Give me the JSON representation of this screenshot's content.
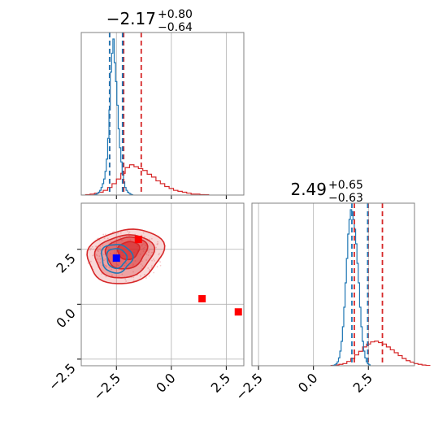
{
  "colors": {
    "red": "#d62728",
    "blue": "#1f77b4",
    "marker_blue": "#0000ff",
    "marker_red": "#ff0000",
    "grid": "#b0b0b0"
  },
  "chart_data": {
    "type": "corner",
    "parameters": [
      {
        "name": "",
        "title": {
          "median": "−2.17",
          "plus": "+0.80",
          "minus": "−0.64"
        },
        "range": [
          -4.1,
          3.3
        ],
        "ticks": [
          -2.5,
          0.0,
          2.5
        ],
        "tick_labels": [
          "−2.5",
          "0.0",
          "2.5"
        ],
        "red_quantiles": [
          -2.81,
          -2.17,
          -1.37
        ],
        "blue_quantiles": [
          -2.81,
          -2.22
        ],
        "red_hist": {
          "bins_start": -3.9,
          "bin_width": 0.2,
          "counts": [
            0.5,
            1,
            2,
            3,
            5,
            8,
            12,
            17,
            23,
            29,
            32,
            30,
            28,
            26,
            22,
            19,
            15,
            12,
            9,
            7,
            5,
            4,
            3,
            2,
            1,
            1,
            0.5,
            0.3
          ]
        },
        "blue_hist": {
          "bins_start": -3.5,
          "bin_width": 0.06,
          "counts": [
            0.5,
            1,
            2,
            3,
            5,
            8,
            12,
            17,
            25,
            38,
            60,
            90,
            130,
            150,
            165,
            140,
            120,
            95,
            70,
            50,
            35,
            22,
            14,
            8,
            5,
            3,
            2,
            1,
            0.5
          ]
        }
      },
      {
        "name": "",
        "title": {
          "median": "2.49",
          "plus": "+0.65",
          "minus": "−0.63"
        },
        "range": [
          -2.8,
          4.6
        ],
        "ticks": [
          -2.5,
          0.0,
          2.5
        ],
        "tick_labels": [
          "−2.5",
          "0.0",
          "2.5"
        ],
        "red_quantiles": [
          1.86,
          2.49,
          3.14
        ],
        "blue_quantiles": [
          1.75,
          2.47
        ],
        "red_hist": {
          "bins_start": 0.8,
          "bin_width": 0.18,
          "counts": [
            0.5,
            1,
            2,
            3,
            6,
            10,
            15,
            20,
            26,
            30,
            33,
            34,
            32,
            30,
            26,
            22,
            18,
            14,
            10,
            7,
            5,
            3,
            2,
            1,
            0.5
          ]
        },
        "blue_hist": {
          "bins_start": 0.9,
          "bin_width": 0.06,
          "counts": [
            0.5,
            1,
            2,
            4,
            8,
            15,
            25,
            40,
            60,
            85,
            110,
            135,
            150,
            160,
            158,
            150,
            140,
            125,
            105,
            85,
            60,
            40,
            25,
            15,
            8,
            4,
            2,
            1
          ]
        }
      }
    ],
    "scatter_2d": {
      "red_contour_center": [
        -2.1,
        2.2
      ],
      "blue_contour_center": [
        -2.5,
        2.1
      ],
      "markers": [
        {
          "color": "blue",
          "x": -2.5,
          "y": 2.1
        },
        {
          "color": "red",
          "x": -1.5,
          "y": 2.95
        },
        {
          "color": "red",
          "x": 1.4,
          "y": 0.25
        },
        {
          "color": "red",
          "x": 3.05,
          "y": -0.35
        }
      ],
      "hlines": [
        2.5,
        0.0,
        -2.5
      ],
      "vlines": [
        -2.5,
        0.0,
        2.5
      ]
    }
  }
}
